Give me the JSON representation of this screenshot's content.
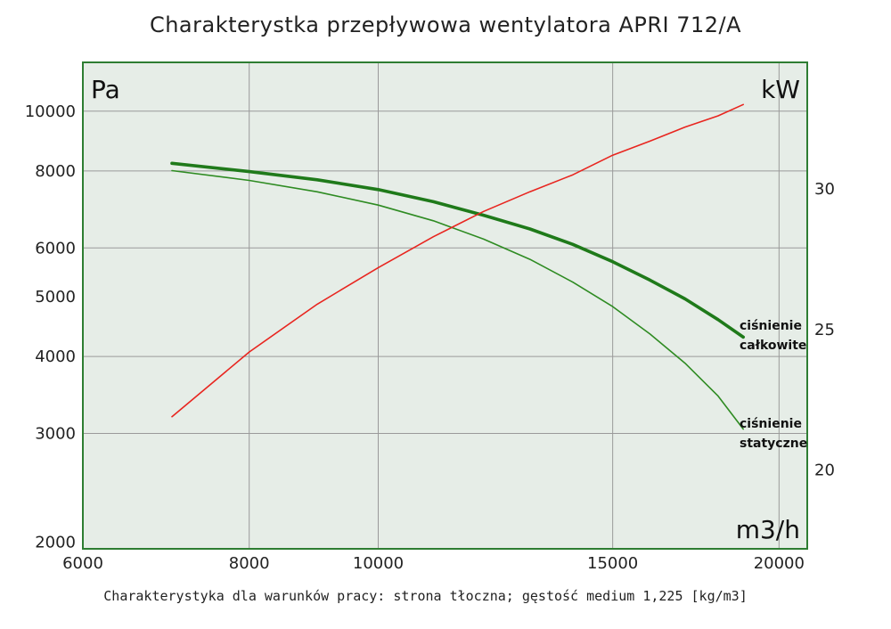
{
  "title": "Charakterystka przepływowa wentylatora APRI 712/A",
  "footnote": "Charakterystyka dla warunków pracy: strona tłoczna; gęstość medium 1,225 [kg/m3]",
  "colors": {
    "plot_background": "#e6ede7",
    "frame": "#2e7d32",
    "grid": "#9a9a9a",
    "total_pressure": "#1f7a1a",
    "static_pressure": "#2e8b22",
    "power": "#e8251f"
  },
  "chart_data": {
    "type": "line",
    "x_unit": "m3/h",
    "y_left_unit": "Pa",
    "y_right_unit": "kW",
    "x_scale": "log",
    "y_left_scale": "log",
    "x_range": [
      6000,
      21000
    ],
    "y_left_range": [
      1950,
      12000
    ],
    "y_right_range": [
      17.2,
      34.5
    ],
    "grid": true,
    "x_ticks": [
      6000,
      8000,
      10000,
      15000,
      20000
    ],
    "y_left_ticks": [
      2000,
      3000,
      4000,
      5000,
      6000,
      8000,
      10000
    ],
    "y_right_ticks": [
      20,
      25,
      30
    ],
    "series": [
      {
        "name": "ciśnienie całkowite",
        "axis": "left",
        "x": [
          7000,
          8000,
          9000,
          10000,
          11000,
          12000,
          13000,
          14000,
          15000,
          16000,
          17000,
          18000,
          18800
        ],
        "y": [
          8230,
          7980,
          7740,
          7460,
          7130,
          6780,
          6440,
          6080,
          5700,
          5320,
          4960,
          4590,
          4300
        ]
      },
      {
        "name": "ciśnienie statyczne",
        "axis": "left",
        "x": [
          7000,
          8000,
          9000,
          10000,
          11000,
          12000,
          13000,
          14000,
          15000,
          16000,
          17000,
          18000,
          18800
        ],
        "y": [
          8010,
          7720,
          7400,
          7040,
          6640,
          6200,
          5750,
          5280,
          4820,
          4350,
          3900,
          3450,
          3050
        ]
      },
      {
        "name": "",
        "axis": "right",
        "x": [
          7000,
          8000,
          9000,
          10000,
          11000,
          12000,
          13000,
          14000,
          15000,
          16000,
          17000,
          18000,
          18800
        ],
        "y": [
          21.9,
          24.2,
          25.9,
          27.2,
          28.3,
          29.2,
          29.9,
          30.5,
          31.2,
          31.7,
          32.2,
          32.6,
          33.0
        ]
      }
    ],
    "corner_labels": {
      "top_left": "Pa",
      "top_right": "kW",
      "bottom_right": "m3/h"
    },
    "annotations": [
      {
        "series": "ciśnienie całkowite",
        "lines": [
          "ciśnienie",
          "całkowite"
        ]
      },
      {
        "series": "ciśnienie statyczne",
        "lines": [
          "ciśnienie",
          "statyczne"
        ]
      }
    ]
  }
}
